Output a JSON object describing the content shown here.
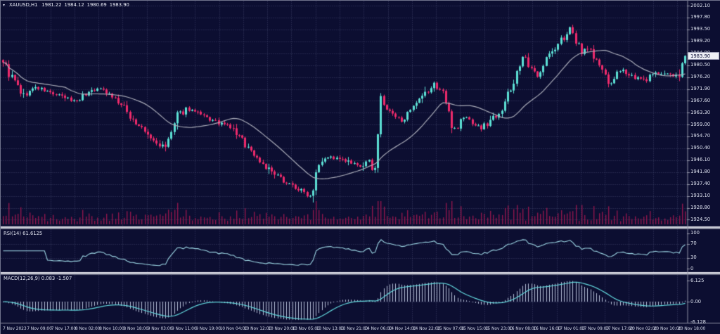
{
  "window": {
    "symbol": "XAUUSD,H1",
    "ohlc": {
      "open": "1981.22",
      "high": "1984.12",
      "low": "1980.69",
      "close": "1983.90"
    }
  },
  "price_axis": {
    "ticks": [
      "2002.10",
      "1997.80",
      "1993.50",
      "1989.20",
      "1984.90",
      "1980.50",
      "1976.20",
      "1971.90",
      "1967.60",
      "1963.30",
      "1959.00",
      "1954.70",
      "1950.40",
      "1946.10",
      "1941.80",
      "1937.40",
      "1933.10",
      "1928.80",
      "1924.50"
    ],
    "current_price": "1983.90"
  },
  "time_axis": {
    "labels": [
      "7 Nov 2023",
      "7 Nov 09:00",
      "7 Nov 17:00",
      "8 Nov 02:00",
      "8 Nov 10:00",
      "8 Nov 18:00",
      "9 Nov 03:00",
      "9 Nov 11:00",
      "9 Nov 19:00",
      "10 Nov 04:00",
      "10 Nov 12:00",
      "10 Nov 20:00",
      "13 Nov 05:00",
      "13 Nov 13:00",
      "13 Nov 21:00",
      "14 Nov 06:00",
      "14 Nov 14:00",
      "14 Nov 22:00",
      "15 Nov 07:00",
      "15 Nov 15:00",
      "15 Nov 23:00",
      "16 Nov 08:00",
      "16 Nov 16:00",
      "17 Nov 01:00",
      "17 Nov 09:00",
      "17 Nov 17:00",
      "20 Nov 02:00",
      "20 Nov 10:00",
      "20 Nov 18:00"
    ]
  },
  "rsi_panel": {
    "label": "RSI(14) 61.6125",
    "ticks": [
      100,
      70,
      30,
      0
    ],
    "levels": [
      70,
      30
    ]
  },
  "macd_panel": {
    "label": "MACD(12,26,9) 0.083 -1.507",
    "ticks": [
      6.125,
      0.0,
      -6.128
    ]
  },
  "colors": {
    "bg": "#0c0e31",
    "grid": "#3d4268",
    "bull": "#5ce0d5",
    "bear": "#ee2a6b",
    "ma": "#a9abb8",
    "volume": "#8f164c",
    "rsi_line": "#9ed8e6",
    "macd_hist": "#b7c0d8",
    "macd_signal": "#63d9de",
    "separator": "#c2c3cf",
    "sep_hi": "#e8e8f0",
    "sep_lo": "#585a73",
    "axis_border": "#8e90a4",
    "tag_bg": "#eef0f6",
    "tag_fg": "#11133a"
  },
  "chart_data": {
    "type": "candlestick",
    "title": "XAUUSD,H1 1981.22 1984.12 1980.69 1983.90",
    "symbol": "XAUUSD",
    "timeframe": "H1",
    "bars": 232,
    "y_range": [
      1922.7,
      2003.9
    ],
    "x_labels": [
      "7 Nov 2023",
      "7 Nov 09:00",
      "7 Nov 17:00",
      "8 Nov 02:00",
      "8 Nov 10:00",
      "8 Nov 18:00",
      "9 Nov 03:00",
      "9 Nov 11:00",
      "9 Nov 19:00",
      "10 Nov 04:00",
      "10 Nov 12:00",
      "10 Nov 20:00",
      "13 Nov 05:00",
      "13 Nov 13:00",
      "13 Nov 21:00",
      "14 Nov 06:00",
      "14 Nov 14:00",
      "14 Nov 22:00",
      "15 Nov 07:00",
      "15 Nov 15:00",
      "15 Nov 23:00",
      "16 Nov 08:00",
      "16 Nov 16:00",
      "17 Nov 01:00",
      "17 Nov 09:00",
      "17 Nov 17:00",
      "20 Nov 02:00",
      "20 Nov 10:00",
      "20 Nov 18:00"
    ],
    "open_first": 1982.4,
    "last_bar": {
      "o": 1981.22,
      "h": 1984.12,
      "l": 1980.69,
      "c": 1983.9
    },
    "prev_bar": {
      "o": 1976.3,
      "h": 1981.7,
      "l": 1975.9,
      "c": 1981.22
    },
    "price_path": [
      [
        0.0,
        1981.5
      ],
      [
        0.01,
        1977.0
      ],
      [
        0.03,
        1969.5
      ],
      [
        0.048,
        1972.5
      ],
      [
        0.075,
        1970.0
      ],
      [
        0.105,
        1967.5
      ],
      [
        0.13,
        1971.5
      ],
      [
        0.148,
        1972.0
      ],
      [
        0.168,
        1967.5
      ],
      [
        0.195,
        1959.5
      ],
      [
        0.222,
        1952.5
      ],
      [
        0.238,
        1950.5
      ],
      [
        0.256,
        1962.0
      ],
      [
        0.27,
        1965.0
      ],
      [
        0.292,
        1962.0
      ],
      [
        0.315,
        1959.5
      ],
      [
        0.332,
        1958.5
      ],
      [
        0.348,
        1954.0
      ],
      [
        0.372,
        1947.0
      ],
      [
        0.396,
        1941.0
      ],
      [
        0.42,
        1937.5
      ],
      [
        0.44,
        1934.5
      ],
      [
        0.452,
        1933.0
      ],
      [
        0.46,
        1944.5
      ],
      [
        0.472,
        1947.5
      ],
      [
        0.5,
        1946.0
      ],
      [
        0.522,
        1943.5
      ],
      [
        0.537,
        1945.5
      ],
      [
        0.545,
        1942.5
      ],
      [
        0.554,
        1968.0
      ],
      [
        0.566,
        1963.5
      ],
      [
        0.582,
        1960.5
      ],
      [
        0.6,
        1964.0
      ],
      [
        0.616,
        1969.0
      ],
      [
        0.632,
        1973.5
      ],
      [
        0.645,
        1971.0
      ],
      [
        0.656,
        1960.0
      ],
      [
        0.663,
        1957.5
      ],
      [
        0.676,
        1962.0
      ],
      [
        0.69,
        1959.5
      ],
      [
        0.702,
        1957.5
      ],
      [
        0.716,
        1961.0
      ],
      [
        0.73,
        1964.5
      ],
      [
        0.744,
        1971.0
      ],
      [
        0.755,
        1980.0
      ],
      [
        0.763,
        1983.0
      ],
      [
        0.773,
        1979.0
      ],
      [
        0.783,
        1977.5
      ],
      [
        0.796,
        1983.0
      ],
      [
        0.81,
        1986.5
      ],
      [
        0.824,
        1991.5
      ],
      [
        0.83,
        1993.0
      ],
      [
        0.84,
        1989.0
      ],
      [
        0.85,
        1985.5
      ],
      [
        0.858,
        1987.5
      ],
      [
        0.868,
        1982.5
      ],
      [
        0.878,
        1979.5
      ],
      [
        0.887,
        1972.5
      ],
      [
        0.898,
        1977.5
      ],
      [
        0.912,
        1978.5
      ],
      [
        0.926,
        1976.0
      ],
      [
        0.94,
        1975.0
      ],
      [
        0.952,
        1977.0
      ],
      [
        0.965,
        1978.0
      ],
      [
        0.978,
        1977.0
      ],
      [
        0.99,
        1976.3
      ],
      [
        1.0,
        1983.9
      ]
    ],
    "indicators": {
      "ma_period": 22,
      "rsi": {
        "period": 14,
        "last": 61.6125,
        "scale": [
          0,
          100
        ],
        "levels": [
          70,
          30
        ]
      },
      "macd": {
        "fast": 12,
        "slow": 26,
        "signal": 9,
        "last_main": 0.083,
        "last_signal": -1.507,
        "scale": [
          -6.128,
          6.125
        ]
      }
    },
    "synthesis": {
      "seed": 9,
      "base_jitter": 0.35,
      "slope_jitter": 0.85,
      "max_jitter": 1.9
    }
  }
}
